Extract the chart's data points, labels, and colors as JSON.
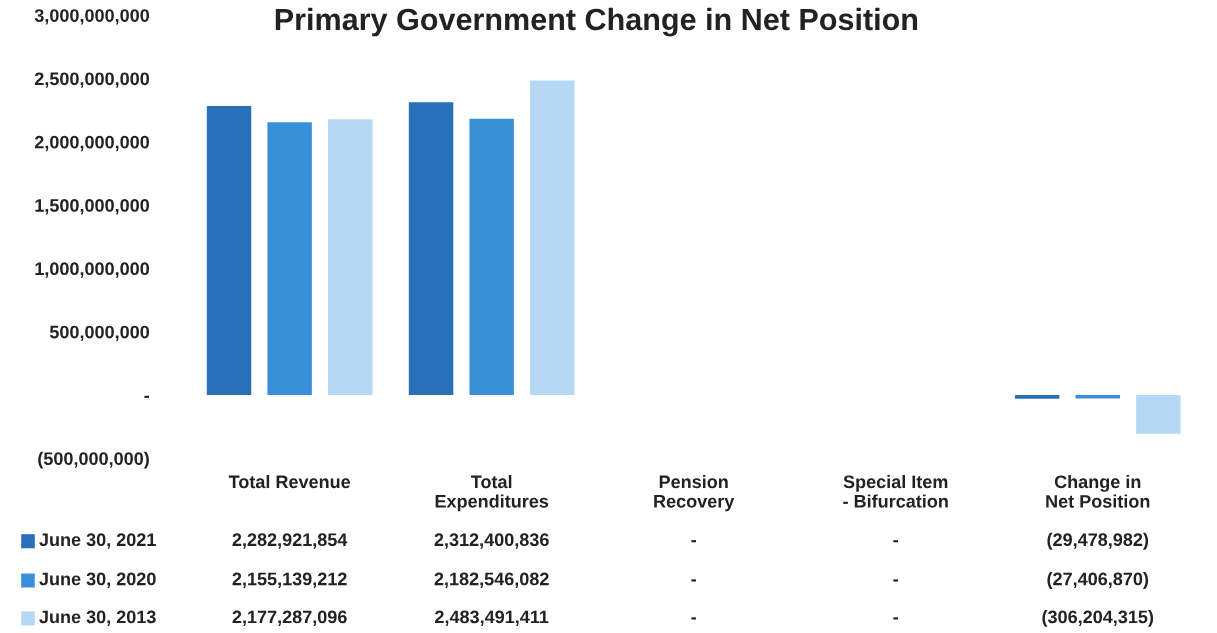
{
  "chart_data": {
    "type": "bar",
    "title": "Primary Government Change in Net Position",
    "categories": [
      "Total Revenue",
      "Total Expenditures",
      "Pension Recovery",
      "Special Item - Bifurcation",
      "Change in Net Position"
    ],
    "series": [
      {
        "name": "June 30, 2021",
        "color": "#2a70b8",
        "values": [
          2282921854,
          2312400836,
          0,
          0,
          -29478982
        ],
        "value_labels": [
          "2,282,921,854",
          "2,312,400,836",
          "-",
          "-",
          "(29,478,982)"
        ]
      },
      {
        "name": "June 30, 2020",
        "color": "#3a90d8",
        "values": [
          2155139212,
          2182546082,
          0,
          0,
          -27406870
        ],
        "value_labels": [
          "2,155,139,212",
          "2,182,546,082",
          "-",
          "-",
          "(27,406,870)"
        ]
      },
      {
        "name": "June 30, 2013",
        "color": "#b5d8f5",
        "values": [
          2177287096,
          2483491411,
          0,
          0,
          -306204315
        ],
        "value_labels": [
          "2,177,287,096",
          "2,483,491,411",
          "-",
          "-",
          "(306,204,315)"
        ]
      }
    ],
    "ylim": [
      -500000000,
      3000000000
    ],
    "yticks": [
      {
        "value": -500000000,
        "label": "(500,000,000)"
      },
      {
        "value": 0,
        "label": "-"
      },
      {
        "value": 500000000,
        "label": "500,000,000"
      },
      {
        "value": 1000000000,
        "label": "1,000,000,000"
      },
      {
        "value": 1500000000,
        "label": "1,500,000,000"
      },
      {
        "value": 2000000000,
        "label": "2,000,000,000"
      },
      {
        "value": 2500000000,
        "label": "2,500,000,000"
      },
      {
        "value": 3000000000,
        "label": "3,000,000,000"
      }
    ],
    "legend": "bottom",
    "grid": false
  }
}
